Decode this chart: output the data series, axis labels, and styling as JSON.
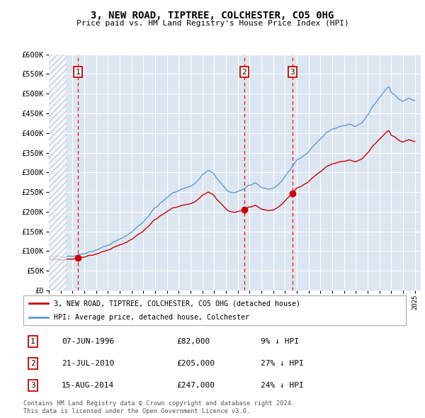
{
  "title": "3, NEW ROAD, TIPTREE, COLCHESTER, CO5 0HG",
  "subtitle": "Price paid vs. HM Land Registry's House Price Index (HPI)",
  "legend_line1": "3, NEW ROAD, TIPTREE, COLCHESTER, CO5 0HG (detached house)",
  "legend_line2": "HPI: Average price, detached house, Colchester",
  "footer1": "Contains HM Land Registry data © Crown copyright and database right 2024.",
  "footer2": "This data is licensed under the Open Government Licence v3.0.",
  "transactions": [
    {
      "num": 1,
      "date": "07-JUN-1996",
      "price": 82000,
      "pct": "9%",
      "dir": "↓",
      "year": 1996.44
    },
    {
      "num": 2,
      "date": "21-JUL-2010",
      "price": 205000,
      "pct": "27%",
      "dir": "↓",
      "year": 2010.55
    },
    {
      "num": 3,
      "date": "15-AUG-2014",
      "price": 247000,
      "pct": "24%",
      "dir": "↓",
      "year": 2014.62
    }
  ],
  "ylim": [
    0,
    600000
  ],
  "yticks": [
    0,
    50000,
    100000,
    150000,
    200000,
    250000,
    300000,
    350000,
    400000,
    450000,
    500000,
    550000,
    600000
  ],
  "xlim_start": 1994.0,
  "xlim_end": 2025.5,
  "background_color": "#dce6f1",
  "grid_color": "#ffffff",
  "hpi_color": "#5b9bd5",
  "price_color": "#cc0000",
  "vline_color": "#ff0000",
  "box_color": "#cc0000",
  "dot_color": "#cc0000",
  "hatch_end": 1995.5
}
